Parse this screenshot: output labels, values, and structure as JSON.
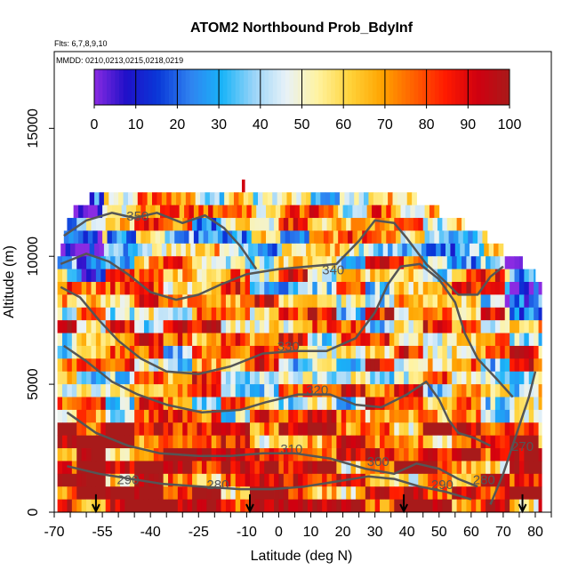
{
  "chart_data": {
    "type": "heatmap",
    "title": "ATOM2 Northbound Prob_BdyInf",
    "subtitle_flights": "Flts: 6,7,8,9,10",
    "subtitle_dates": "MMDD: 0210,0213,0215,0218,0219",
    "xlabel": "Latitude (deg N)",
    "ylabel": "Altitude (m)",
    "xlim": [
      -70,
      85
    ],
    "ylim": [
      0,
      18000
    ],
    "x_tick_values": [
      -70,
      -55,
      -40,
      -25,
      -10,
      0,
      10,
      20,
      30,
      40,
      50,
      60,
      70,
      80
    ],
    "x_tick_labels": [
      "-70",
      "-55",
      "-40",
      "-25",
      "-10",
      "0",
      "10",
      "20",
      "30",
      "40",
      "50",
      "60",
      "70",
      "80"
    ],
    "x_minor_step": 5,
    "y_tick_values": [
      0,
      5000,
      10000,
      15000
    ],
    "y_tick_labels": [
      "0",
      "5000",
      "10000",
      "15000"
    ],
    "colorbar": {
      "ticks": [
        0,
        10,
        20,
        30,
        40,
        50,
        60,
        70,
        80,
        90,
        100
      ],
      "tick_labels": [
        "0",
        "10",
        "20",
        "30",
        "40",
        "50",
        "60",
        "70",
        "80",
        "90",
        "100"
      ],
      "colors": [
        "#8a2be2",
        "#1f10c8",
        "#0a38d8",
        "#2f82f0",
        "#18b4f8",
        "#9ad4f8",
        "#e8f2f8",
        "#fff3a0",
        "#ffd33a",
        "#ffa400",
        "#ff6000",
        "#ff1a00",
        "#d00010",
        "#a81a1a"
      ]
    },
    "contour_color": "#555555",
    "contour_labels": [
      {
        "text": "350",
        "lat": -44,
        "alt": 11400
      },
      {
        "text": "340",
        "lat": 17,
        "alt": 9300
      },
      {
        "text": "330",
        "lat": 3,
        "alt": 6300
      },
      {
        "text": "320",
        "lat": 12,
        "alt": 4600
      },
      {
        "text": "310",
        "lat": 4,
        "alt": 2300
      },
      {
        "text": "300",
        "lat": 31,
        "alt": 1800
      },
      {
        "text": "290",
        "lat": 51,
        "alt": 900
      },
      {
        "text": "280",
        "lat": -19,
        "alt": 900
      },
      {
        "text": "290",
        "lat": -47,
        "alt": 1100
      },
      {
        "text": "280",
        "lat": 64,
        "alt": 1100
      },
      {
        "text": "270",
        "lat": 76,
        "alt": 2400
      }
    ],
    "contours": [
      {
        "level": 350,
        "points": [
          [
            -67,
            10800
          ],
          [
            -60,
            11400
          ],
          [
            -52,
            11700
          ],
          [
            -45,
            11500
          ],
          [
            -38,
            11700
          ],
          [
            -30,
            11300
          ],
          [
            -23,
            11600
          ],
          [
            -17,
            11100
          ],
          [
            -12,
            10400
          ],
          [
            -7,
            9500
          ]
        ]
      },
      {
        "level": 340,
        "points": [
          [
            -68,
            9700
          ],
          [
            -60,
            10100
          ],
          [
            -53,
            9800
          ],
          [
            -47,
            9300
          ],
          [
            -40,
            8600
          ],
          [
            -32,
            8300
          ],
          [
            -25,
            8500
          ],
          [
            -18,
            8900
          ],
          [
            -10,
            9300
          ],
          [
            0,
            9500
          ],
          [
            9,
            9600
          ],
          [
            18,
            9700
          ],
          [
            25,
            10600
          ],
          [
            30,
            11400
          ],
          [
            36,
            11300
          ],
          [
            40,
            10700
          ],
          [
            46,
            9700
          ],
          [
            52,
            9000
          ],
          [
            56,
            8500
          ],
          [
            62,
            8500
          ],
          [
            66,
            9200
          ],
          [
            70,
            9600
          ]
        ]
      },
      {
        "level": 330,
        "points": [
          [
            -68,
            8800
          ],
          [
            -62,
            8400
          ],
          [
            -56,
            7500
          ],
          [
            -50,
            6700
          ],
          [
            -43,
            6000
          ],
          [
            -35,
            5500
          ],
          [
            -25,
            5400
          ],
          [
            -15,
            5700
          ],
          [
            -5,
            6200
          ],
          [
            5,
            6300
          ],
          [
            15,
            6300
          ],
          [
            24,
            6800
          ],
          [
            30,
            7800
          ],
          [
            34,
            8900
          ],
          [
            38,
            9600
          ],
          [
            44,
            9700
          ],
          [
            50,
            9100
          ],
          [
            55,
            8200
          ],
          [
            58,
            7000
          ],
          [
            62,
            6000
          ],
          [
            68,
            5200
          ],
          [
            73,
            4500
          ]
        ]
      },
      {
        "level": 320,
        "points": [
          [
            -67,
            6500
          ],
          [
            -60,
            5900
          ],
          [
            -52,
            5100
          ],
          [
            -44,
            4600
          ],
          [
            -35,
            4200
          ],
          [
            -24,
            3900
          ],
          [
            -12,
            4000
          ],
          [
            -4,
            4300
          ],
          [
            6,
            4600
          ],
          [
            16,
            4600
          ],
          [
            24,
            4200
          ],
          [
            32,
            4100
          ],
          [
            40,
            4600
          ],
          [
            46,
            5100
          ],
          [
            50,
            4400
          ],
          [
            53,
            3600
          ],
          [
            56,
            3100
          ],
          [
            61,
            2900
          ],
          [
            66,
            2600
          ]
        ]
      },
      {
        "level": 310,
        "points": [
          [
            -66,
            3900
          ],
          [
            -57,
            3100
          ],
          [
            -47,
            2600
          ],
          [
            -37,
            2300
          ],
          [
            -25,
            2200
          ],
          [
            -15,
            2200
          ],
          [
            -5,
            2300
          ],
          [
            5,
            2300
          ],
          [
            16,
            2100
          ],
          [
            27,
            1700
          ],
          [
            36,
            1500
          ],
          [
            43,
            1900
          ],
          [
            50,
            1700
          ],
          [
            56,
            1300
          ],
          [
            62,
            1000
          ]
        ]
      },
      {
        "level": 300,
        "points": [
          [
            -66,
            1800
          ],
          [
            -56,
            1500
          ],
          [
            -46,
            1300
          ],
          [
            -36,
            1100
          ],
          [
            -24,
            1000
          ],
          [
            -12,
            900
          ],
          [
            -2,
            900
          ],
          [
            8,
            1000
          ],
          [
            18,
            1200
          ],
          [
            28,
            1400
          ],
          [
            36,
            1300
          ],
          [
            44,
            1000
          ],
          [
            52,
            800
          ],
          [
            60,
            500
          ]
        ]
      },
      {
        "level": 280,
        "points": [
          [
            66,
            300
          ],
          [
            70,
            1500
          ],
          [
            74,
            3000
          ],
          [
            78,
            4500
          ],
          [
            80,
            5500
          ]
        ]
      }
    ],
    "flight_bands": [
      {
        "alt_min": 12000,
        "alt_max": 12500,
        "lat_start": -59,
        "lat_end": 43
      },
      {
        "alt_min": 11500,
        "alt_max": 12000,
        "lat_start": -64,
        "lat_end": 50
      },
      {
        "alt_min": 11000,
        "alt_max": 11500,
        "lat_start": -66,
        "lat_end": 58
      },
      {
        "alt_min": 10500,
        "alt_max": 11000,
        "lat_start": -67,
        "lat_end": 65
      },
      {
        "alt_min": 10000,
        "alt_max": 10500,
        "lat_start": -68,
        "lat_end": 70
      },
      {
        "alt_min": 9500,
        "alt_max": 10000,
        "lat_start": -69,
        "lat_end": 76
      },
      {
        "alt_min": 9000,
        "alt_max": 9500,
        "lat_start": -69,
        "lat_end": 80
      },
      {
        "alt_min": 8500,
        "alt_max": 9000,
        "lat_start": -69,
        "lat_end": 82
      },
      {
        "alt_min": 8000,
        "alt_max": 8500,
        "lat_start": -69,
        "lat_end": 82
      },
      {
        "alt_min": 7500,
        "alt_max": 8000,
        "lat_start": -69,
        "lat_end": 82
      },
      {
        "alt_min": 7000,
        "alt_max": 7500,
        "lat_start": -69,
        "lat_end": 82
      },
      {
        "alt_min": 6500,
        "alt_max": 7000,
        "lat_start": -69,
        "lat_end": 82
      },
      {
        "alt_min": 6000,
        "alt_max": 6500,
        "lat_start": -69,
        "lat_end": 82
      },
      {
        "alt_min": 5500,
        "alt_max": 6000,
        "lat_start": -69,
        "lat_end": 82
      },
      {
        "alt_min": 5000,
        "alt_max": 5500,
        "lat_start": -69,
        "lat_end": 82
      },
      {
        "alt_min": 4500,
        "alt_max": 5000,
        "lat_start": -69,
        "lat_end": 82
      },
      {
        "alt_min": 4000,
        "alt_max": 4500,
        "lat_start": -69,
        "lat_end": 82
      },
      {
        "alt_min": 3500,
        "alt_max": 4000,
        "lat_start": -69,
        "lat_end": 82
      },
      {
        "alt_min": 3000,
        "alt_max": 3500,
        "lat_start": -69,
        "lat_end": 82
      },
      {
        "alt_min": 2500,
        "alt_max": 3000,
        "lat_start": -69,
        "lat_end": 82
      },
      {
        "alt_min": 2000,
        "alt_max": 2500,
        "lat_start": -69,
        "lat_end": 82
      },
      {
        "alt_min": 1500,
        "alt_max": 2000,
        "lat_start": -69,
        "lat_end": 82
      },
      {
        "alt_min": 1000,
        "alt_max": 1500,
        "lat_start": -69,
        "lat_end": 82
      },
      {
        "alt_min": 500,
        "alt_max": 1000,
        "lat_start": -69,
        "lat_end": 82
      },
      {
        "alt_min": 0,
        "alt_max": 500,
        "lat_start": -69,
        "lat_end": 82
      }
    ],
    "profile_arrows_lat": [
      -57,
      -9,
      39,
      76
    ]
  }
}
